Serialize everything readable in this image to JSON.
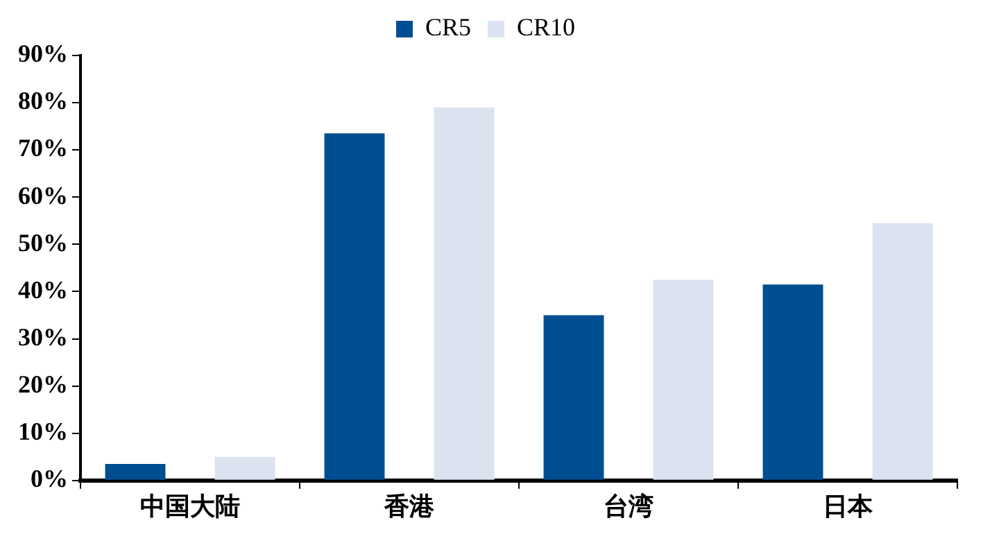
{
  "chart_data": {
    "type": "bar",
    "categories": [
      "中国大陆",
      "香港",
      "台湾",
      "日本"
    ],
    "series": [
      {
        "name": "CR5",
        "color": "#004e92",
        "values": [
          3.5,
          73.5,
          35,
          41.5
        ]
      },
      {
        "name": "CR10",
        "color": "#dbe3f1",
        "values": [
          5,
          79,
          42.5,
          54.5
        ]
      }
    ],
    "ylim": [
      0,
      90
    ],
    "yticks": [
      {
        "value": 0,
        "label": "0%"
      },
      {
        "value": 10,
        "label": "10%"
      },
      {
        "value": 20,
        "label": "20%"
      },
      {
        "value": 30,
        "label": "30%"
      },
      {
        "value": 40,
        "label": "40%"
      },
      {
        "value": 50,
        "label": "50%"
      },
      {
        "value": 60,
        "label": "60%"
      },
      {
        "value": 70,
        "label": "70%"
      },
      {
        "value": 80,
        "label": "80%"
      },
      {
        "value": 90,
        "label": "90%"
      }
    ],
    "grid": false,
    "legend": "top"
  }
}
